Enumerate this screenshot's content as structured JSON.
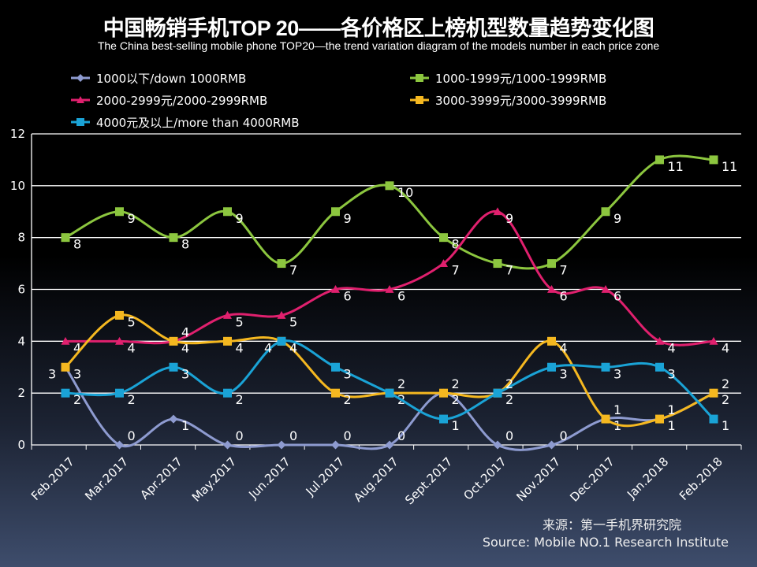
{
  "chart_data": {
    "type": "line",
    "title": "中国畅销手机TOP 20——各价格区上榜机型数量趋势变化图",
    "subtitle": "The China best-selling mobile phone TOP20—the trend variation diagram of the models number in each price zone",
    "categories": [
      "Feb.2017",
      "Mar.2017",
      "Apr.2017",
      "May.2017",
      "Jun.2017",
      "Jul.2017",
      "Aug.2017",
      "Sept.2017",
      "Oct.2017",
      "Nov.2017",
      "Dec.2017",
      "Jan.2018",
      "Feb.2018"
    ],
    "ylim": [
      0,
      12
    ],
    "yticks": [
      0,
      2,
      4,
      6,
      8,
      10,
      12
    ],
    "grid": true,
    "legend": "top",
    "smooth": true,
    "series": [
      {
        "name": "1000以下/down 1000RMB",
        "color": "#8e9bd0",
        "marker": "diamond",
        "values": [
          3,
          0,
          1,
          0,
          0,
          0,
          0,
          2,
          0,
          0,
          1,
          1,
          2
        ]
      },
      {
        "name": "1000-1999元/1000-1999RMB",
        "color": "#8cc63f",
        "marker": "square",
        "values": [
          8,
          9,
          8,
          9,
          7,
          9,
          10,
          8,
          7,
          7,
          9,
          11,
          11
        ]
      },
      {
        "name": "2000-2999元/2000-2999RMB",
        "color": "#e0206e",
        "marker": "triangle",
        "values": [
          4,
          4,
          4,
          5,
          5,
          6,
          6,
          7,
          9,
          6,
          6,
          4,
          4
        ]
      },
      {
        "name": "3000-3999元/3000-3999RMB",
        "color": "#f5b820",
        "marker": "square",
        "values": [
          3,
          5,
          4,
          4,
          4,
          2,
          2,
          2,
          2,
          4,
          1,
          1,
          2
        ]
      },
      {
        "name": "4000元及以上/more than 4000RMB",
        "color": "#1aa3d6",
        "marker": "square",
        "values": [
          2,
          2,
          3,
          2,
          4,
          3,
          2,
          1,
          2,
          3,
          3,
          3,
          1
        ]
      }
    ]
  },
  "source": {
    "line1": "来源：第一手机界研究院",
    "line2": "Source: Mobile NO.1 Research Institute"
  }
}
